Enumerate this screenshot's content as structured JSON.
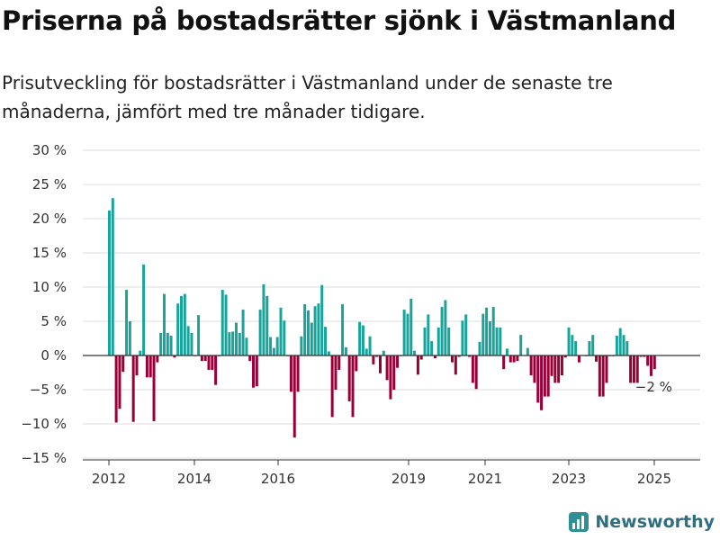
{
  "title": "Priserna på bostadsrätter sjönk i Västmanland",
  "subtitle": "Prisutveckling för bostadsrätter i Västmanland under de senaste tre månaderna, jämfört med tre månader tidigare.",
  "brand": "Newsworthy",
  "colors": {
    "positive": "#1aa39b",
    "negative": "#9a0038",
    "grid": "#dddddd",
    "axis": "#333333"
  },
  "chart_data": {
    "type": "bar",
    "ylim": [
      -15,
      30
    ],
    "y_ticks": [
      30,
      25,
      20,
      15,
      10,
      5,
      0,
      -5,
      -10,
      -15
    ],
    "y_tick_labels": [
      "30 %",
      "25 %",
      "20 %",
      "15 %",
      "10 %",
      "5 %",
      "0 %",
      "−5 %",
      "−10 %",
      "−15 %"
    ],
    "x_ticks": [
      "2012",
      "2014",
      "2016",
      "2019",
      "2021",
      "2023",
      "2025"
    ],
    "grid": true,
    "last_value_label": "−2 %",
    "values": [
      21.2,
      23.0,
      -9.8,
      -7.8,
      -2.4,
      9.6,
      5.0,
      -9.7,
      -2.9,
      0.7,
      13.3,
      -3.2,
      -3.2,
      -9.6,
      -1.0,
      3.3,
      9.0,
      3.3,
      2.9,
      -0.3,
      7.6,
      8.7,
      9.0,
      4.3,
      3.3,
      -0.1,
      5.9,
      -0.8,
      -0.8,
      -2.1,
      -2.1,
      -4.3,
      -0.1,
      9.6,
      8.9,
      3.4,
      3.5,
      4.8,
      3.3,
      6.7,
      2.6,
      -0.8,
      -4.7,
      -4.5,
      6.7,
      10.4,
      8.7,
      2.7,
      1.1,
      2.7,
      7.0,
      5.1,
      -0.1,
      -5.3,
      -12.0,
      -5.3,
      2.8,
      7.5,
      6.6,
      4.8,
      7.2,
      7.6,
      10.3,
      4.2,
      0.6,
      -9.0,
      -5.0,
      -2.1,
      7.5,
      1.2,
      -6.7,
      -9.0,
      -2.3,
      4.9,
      4.4,
      1.0,
      2.8,
      -1.3,
      -0.2,
      -2.6,
      0.7,
      -3.6,
      -6.4,
      -5.0,
      -1.8,
      -0.1,
      6.7,
      6.1,
      8.3,
      0.7,
      -2.8,
      -0.6,
      4.1,
      6.0,
      2.1,
      -0.4,
      4.1,
      7.1,
      8.1,
      4.1,
      -1.0,
      -2.8,
      -0.2,
      5.1,
      6.0,
      -0.2,
      -4.0,
      -4.9,
      2.0,
      6.1,
      7.0,
      5.0,
      7.1,
      4.1,
      4.1,
      -2.0,
      1.0,
      -1.0,
      -1.0,
      -0.8,
      3.0,
      0.0,
      1.1,
      -2.9,
      -4.0,
      -6.9,
      -8.0,
      -6.0,
      -6.0,
      -3.0,
      -4.0,
      -4.0,
      -2.9,
      -0.3,
      4.1,
      3.0,
      2.1,
      -1.0,
      0.0,
      -0.1,
      2.1,
      3.0,
      -0.9,
      -6.0,
      -6.0,
      -4.0,
      -0.1,
      -0.1,
      2.9,
      4.0,
      3.0,
      2.1,
      -4.0,
      -4.0,
      -4.0,
      -0.2,
      -0.2,
      -1.5,
      -3.0,
      -2.0
    ]
  }
}
